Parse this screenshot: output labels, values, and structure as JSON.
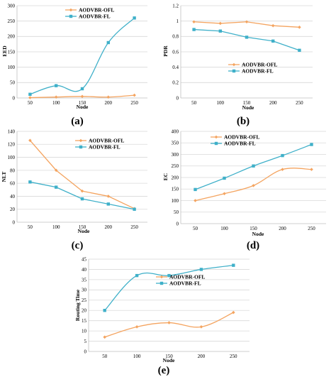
{
  "colors": {
    "ofl": "#f4a460",
    "fl": "#3fb0c9"
  },
  "legend": {
    "ofl": "AODVBR-OFL",
    "fl": "AODVBR-FL"
  },
  "chart_data": [
    {
      "id": "a",
      "type": "line",
      "panel_label": "(a)",
      "xlabel": "Node",
      "ylabel": "EED",
      "categories": [
        "50",
        "100",
        "150",
        "200",
        "250"
      ],
      "ylim": [
        0,
        300
      ],
      "yticks": [
        0,
        50,
        100,
        150,
        200,
        250,
        300
      ],
      "smooth": true,
      "legend_placement": "top-left",
      "series": [
        {
          "name": "AODVBR-OFL",
          "key": "ofl",
          "values": [
            1,
            3,
            5,
            3,
            9
          ]
        },
        {
          "name": "AODVBR-FL",
          "key": "fl",
          "values": [
            12,
            40,
            30,
            180,
            260
          ]
        }
      ]
    },
    {
      "id": "b",
      "type": "line",
      "panel_label": "(b)",
      "xlabel": "Node",
      "ylabel": "PDR",
      "categories": [
        "50",
        "100",
        "150",
        "200",
        "250"
      ],
      "ylim": [
        0,
        1.2
      ],
      "yticks": [
        0,
        0.2,
        0.4,
        0.6,
        0.8,
        1,
        1.2
      ],
      "smooth": false,
      "legend_placement": "bottom-right",
      "series": [
        {
          "name": "AODVBR-OFL",
          "key": "ofl",
          "values": [
            0.99,
            0.97,
            0.99,
            0.94,
            0.92
          ]
        },
        {
          "name": "AODVBR-FL",
          "key": "fl",
          "values": [
            0.89,
            0.87,
            0.79,
            0.74,
            0.62
          ]
        }
      ]
    },
    {
      "id": "c",
      "type": "line",
      "panel_label": "(c)",
      "xlabel": "Node",
      "ylabel": "NLT",
      "categories": [
        "50",
        "100",
        "150",
        "200",
        "250"
      ],
      "ylim": [
        0,
        140
      ],
      "yticks": [
        0,
        20,
        40,
        60,
        80,
        100,
        120,
        140
      ],
      "smooth": false,
      "legend_placement": "top-right",
      "series": [
        {
          "name": "AODVBR-OFL",
          "key": "ofl",
          "values": [
            126,
            80,
            48,
            40,
            21
          ]
        },
        {
          "name": "AODVBR-FL",
          "key": "fl",
          "values": [
            62,
            54,
            36,
            28,
            20
          ]
        }
      ]
    },
    {
      "id": "d",
      "type": "line",
      "panel_label": "(d)",
      "xlabel": "Node",
      "ylabel": "EC",
      "categories": [
        "50",
        "100",
        "150",
        "200",
        "250"
      ],
      "ylim": [
        0,
        400
      ],
      "yticks": [
        0,
        50,
        100,
        150,
        200,
        250,
        300,
        350,
        400
      ],
      "smooth": true,
      "legend_placement": "top-left",
      "series": [
        {
          "name": "AODVBR-OFL",
          "key": "ofl",
          "values": [
            100,
            130,
            165,
            235,
            235
          ]
        },
        {
          "name": "AODVBR-FL",
          "key": "fl",
          "values": [
            148,
            197,
            250,
            295,
            343
          ]
        }
      ]
    },
    {
      "id": "e",
      "type": "line",
      "panel_label": "(e)",
      "xlabel": "Node",
      "ylabel": "Routing Time",
      "categories": [
        "50",
        "100",
        "150",
        "200",
        "250"
      ],
      "ylim": [
        0,
        45
      ],
      "yticks": [
        0,
        5,
        10,
        15,
        20,
        25,
        30,
        35,
        40,
        45
      ],
      "smooth": true,
      "legend_placement": "top-center",
      "series": [
        {
          "name": "AODVBR-OFL",
          "key": "ofl",
          "values": [
            7,
            12,
            14,
            12,
            19
          ]
        },
        {
          "name": "AODVBR-FL",
          "key": "fl",
          "values": [
            20,
            37,
            37,
            40,
            42
          ]
        }
      ]
    }
  ]
}
